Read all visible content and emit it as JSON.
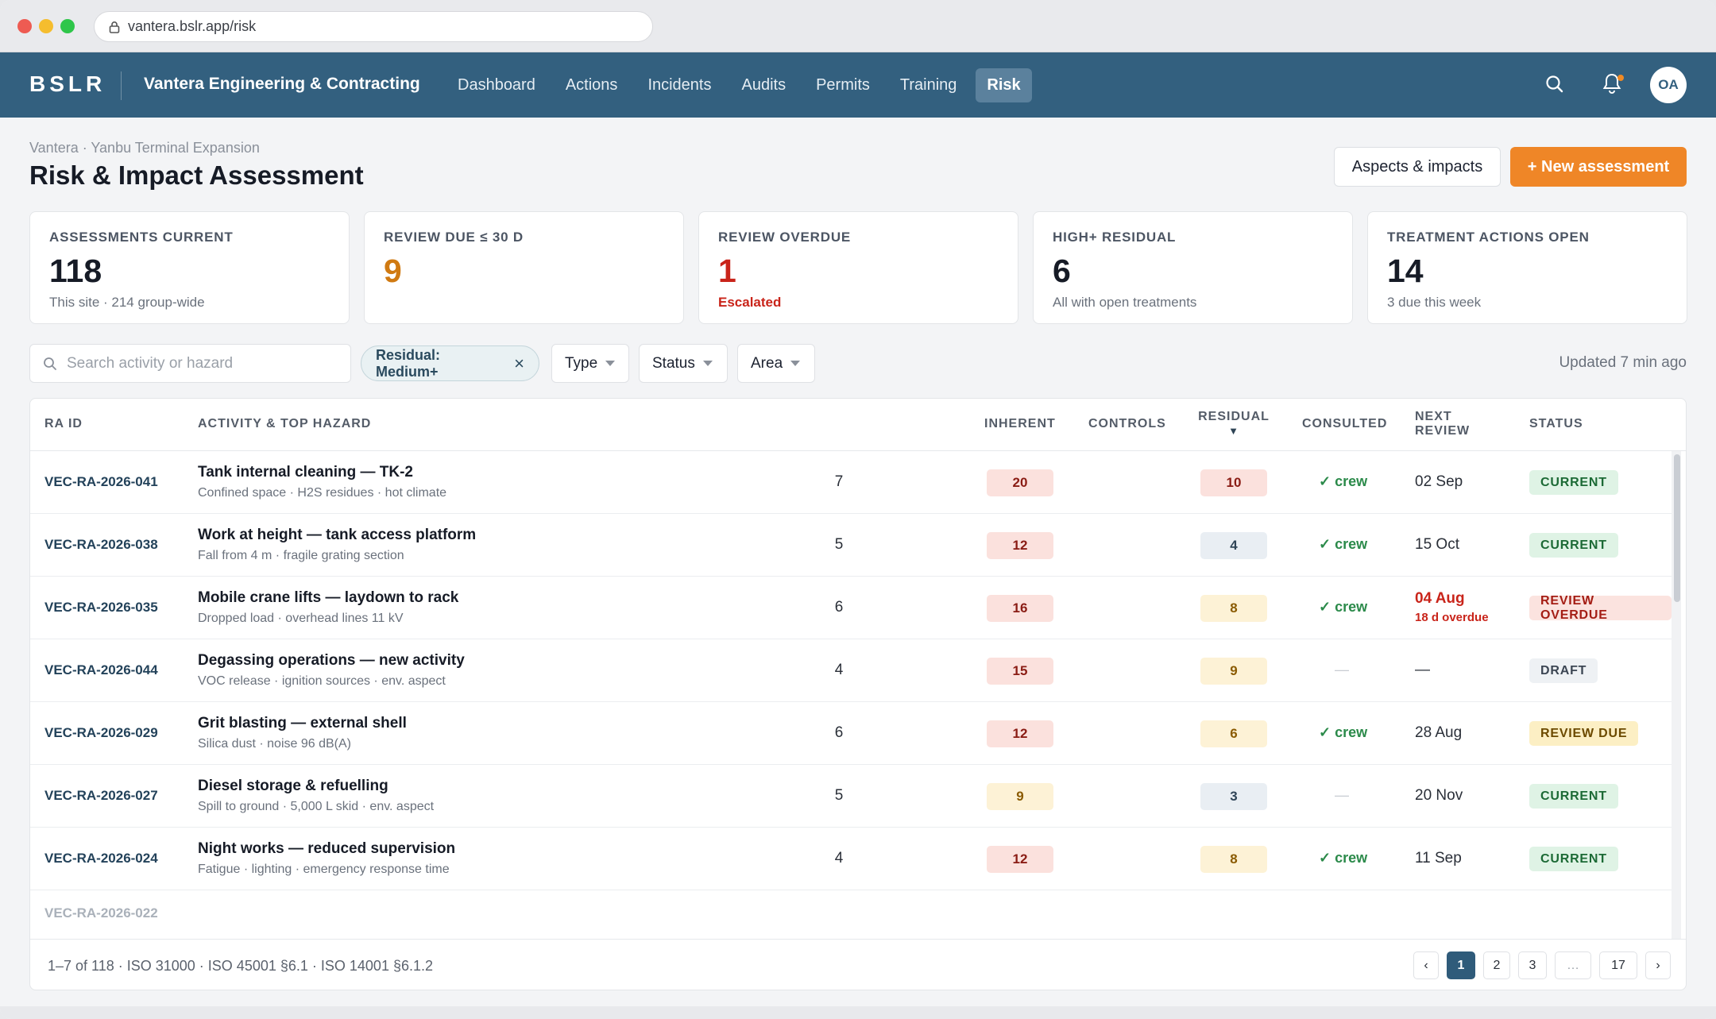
{
  "browser": {
    "url": "vantera.bslr.app/risk"
  },
  "nav": {
    "logo": "BSLR",
    "org": "Vantera Engineering & Contracting",
    "items": [
      "Dashboard",
      "Actions",
      "Incidents",
      "Audits",
      "Permits",
      "Training",
      "Risk"
    ],
    "active": "Risk",
    "avatar": "OA"
  },
  "header": {
    "breadcrumb": "Vantera · Yanbu Terminal Expansion",
    "title": "Risk & Impact Assessment",
    "secondary_button": "Aspects & impacts",
    "primary_button": "+ New assessment"
  },
  "kpis": [
    {
      "label": "ASSESSMENTS CURRENT",
      "value": "118",
      "sub": "This site · 214 group-wide",
      "color": "#161b26",
      "sub_color": "#6a717c"
    },
    {
      "label": "REVIEW DUE ≤ 30 D",
      "value": "9",
      "sub": "",
      "color": "#d07a12",
      "sub_color": "#6a717c"
    },
    {
      "label": "REVIEW OVERDUE",
      "value": "1",
      "sub": "Escalated",
      "color": "#c9241a",
      "sub_color": "#c9241a"
    },
    {
      "label": "HIGH+ RESIDUAL",
      "value": "6",
      "sub": "All with open treatments",
      "color": "#161b26",
      "sub_color": "#6a717c"
    },
    {
      "label": "TREATMENT ACTIONS OPEN",
      "value": "14",
      "sub": "3 due this week",
      "color": "#161b26",
      "sub_color": "#6a717c"
    }
  ],
  "filters": {
    "search_placeholder": "Search activity or hazard",
    "chip": "Residual: Medium+",
    "dropdowns": [
      "Type",
      "Status",
      "Area"
    ],
    "updated": "Updated 7 min ago"
  },
  "table": {
    "headers": {
      "id": "RA ID",
      "activity": "ACTIVITY & TOP HAZARD",
      "inherent": "INHERENT",
      "controls": "CONTROLS",
      "residual": "RESIDUAL",
      "residual_sort": "▼",
      "consulted": "CONSULTED",
      "next_review_1": "NEXT",
      "next_review_2": "REVIEW",
      "status": "STATUS"
    },
    "rows": [
      {
        "id": "VEC-RA-2026-041",
        "activity": "Tank internal cleaning — TK-2",
        "hazard": "Confined space · H2S residues · hot climate",
        "inherent": "20",
        "inherent_level": "high",
        "controls": "7",
        "residual": "10",
        "residual_level": "high",
        "consulted": "✓ crew",
        "review": "02 Sep",
        "review_note": "",
        "status": "CURRENT",
        "status_kind": "cur"
      },
      {
        "id": "VEC-RA-2026-038",
        "activity": "Work at height — tank access platform",
        "hazard": "Fall from 4 m · fragile grating section",
        "inherent": "12",
        "inherent_level": "high",
        "controls": "5",
        "residual": "4",
        "residual_level": "low",
        "consulted": "✓ crew",
        "review": "15 Oct",
        "review_note": "",
        "status": "CURRENT",
        "status_kind": "cur"
      },
      {
        "id": "VEC-RA-2026-035",
        "activity": "Mobile crane lifts — laydown to rack",
        "hazard": "Dropped load · overhead lines 11 kV",
        "inherent": "16",
        "inherent_level": "high",
        "controls": "6",
        "residual": "8",
        "residual_level": "med",
        "consulted": "✓ crew",
        "review": "04 Aug",
        "review_note": "18 d overdue",
        "status": "REVIEW OVERDUE",
        "status_kind": "od"
      },
      {
        "id": "VEC-RA-2026-044",
        "activity": "Degassing operations — new activity",
        "hazard": "VOC release · ignition sources · env. aspect",
        "inherent": "15",
        "inherent_level": "high",
        "controls": "4",
        "residual": "9",
        "residual_level": "med",
        "consulted": "—",
        "review": "—",
        "review_note": "",
        "status": "DRAFT",
        "status_kind": "draft"
      },
      {
        "id": "VEC-RA-2026-029",
        "activity": "Grit blasting — external shell",
        "hazard": "Silica dust · noise 96 dB(A)",
        "inherent": "12",
        "inherent_level": "high",
        "controls": "6",
        "residual": "6",
        "residual_level": "med",
        "consulted": "✓ crew",
        "review": "28 Aug",
        "review_note": "",
        "status": "REVIEW DUE",
        "status_kind": "due"
      },
      {
        "id": "VEC-RA-2026-027",
        "activity": "Diesel storage & refuelling",
        "hazard": "Spill to ground · 5,000 L skid · env. aspect",
        "inherent": "9",
        "inherent_level": "med",
        "controls": "5",
        "residual": "3",
        "residual_level": "low",
        "consulted": "—",
        "review": "20 Nov",
        "review_note": "",
        "status": "CURRENT",
        "status_kind": "cur"
      },
      {
        "id": "VEC-RA-2026-024",
        "activity": "Night works — reduced supervision",
        "hazard": "Fatigue · lighting · emergency response time",
        "inherent": "12",
        "inherent_level": "high",
        "controls": "4",
        "residual": "8",
        "residual_level": "med",
        "consulted": "✓ crew",
        "review": "11 Sep",
        "review_note": "",
        "status": "CURRENT",
        "status_kind": "cur"
      }
    ],
    "partial_row_id": "VEC-RA-2026-022",
    "footer": "1–7 of 118 · ISO 31000 · ISO 45001 §6.1 · ISO 14001 §6.1.2",
    "pagination": {
      "prev": "‹",
      "pages": [
        "1",
        "2",
        "3",
        "…",
        "17"
      ],
      "current": "1",
      "next": "›"
    }
  }
}
